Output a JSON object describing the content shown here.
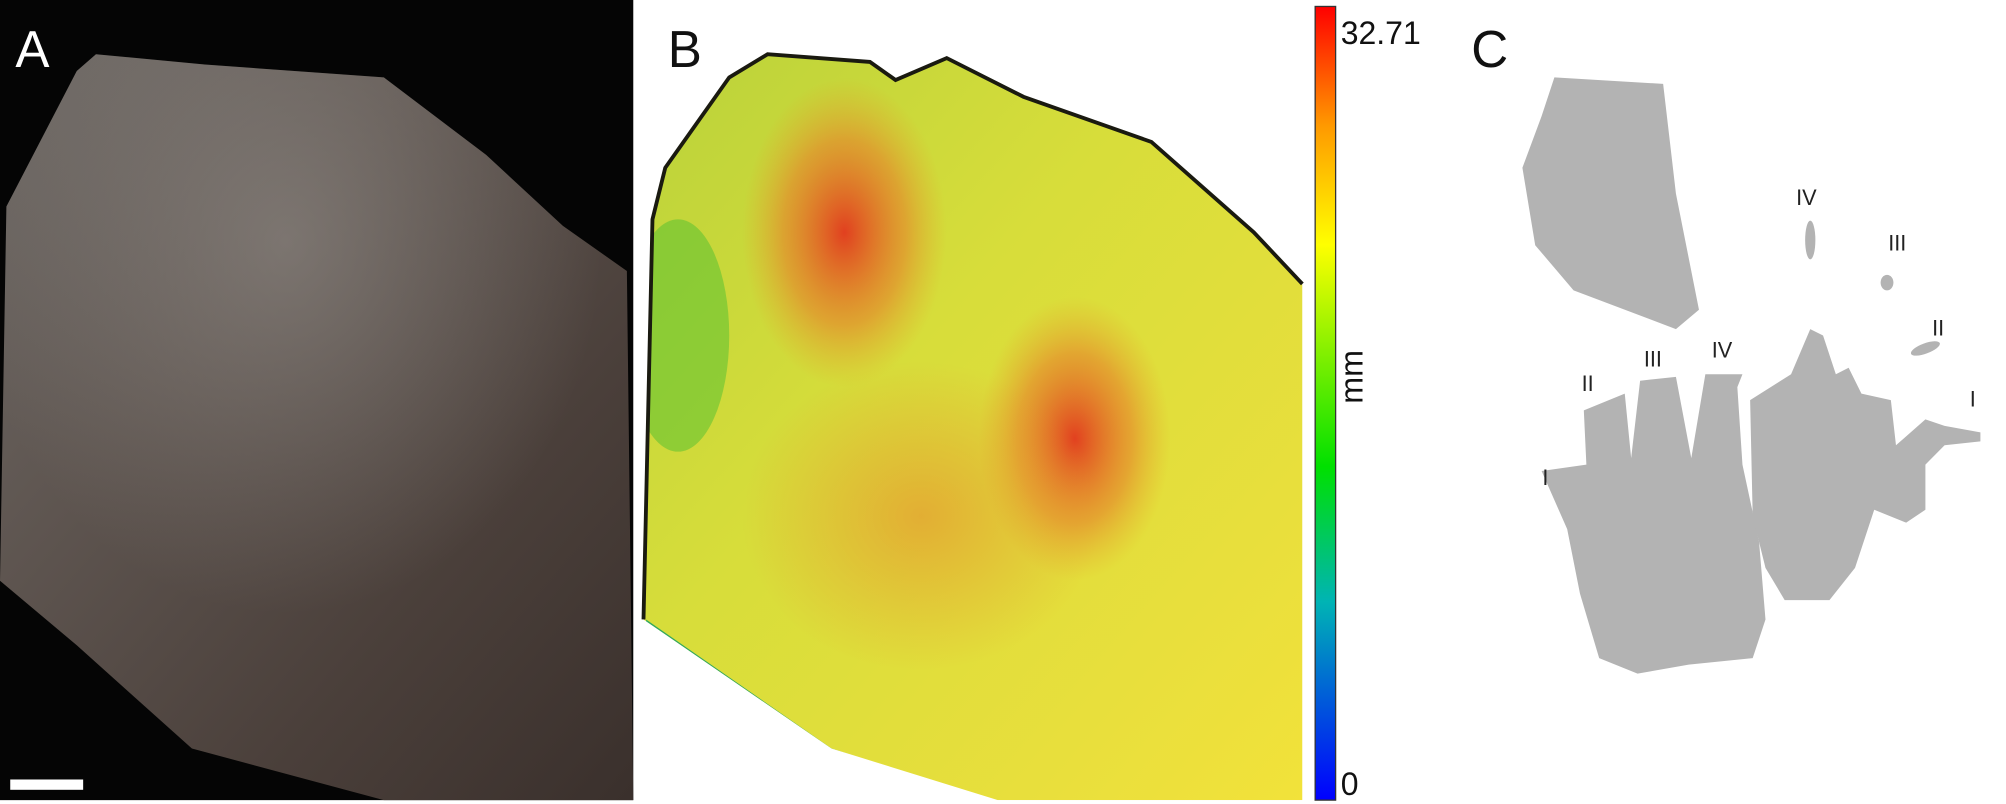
{
  "panels": {
    "a": {
      "label": "A"
    },
    "b": {
      "label": "B",
      "colorbar": {
        "max_label": "32.71",
        "min_label": "0",
        "unit": "mm"
      }
    },
    "c": {
      "label": "C",
      "left_digits": [
        "I",
        "II",
        "III",
        "IV"
      ],
      "right_digits": [
        "IV",
        "III",
        "II",
        "I"
      ]
    }
  }
}
